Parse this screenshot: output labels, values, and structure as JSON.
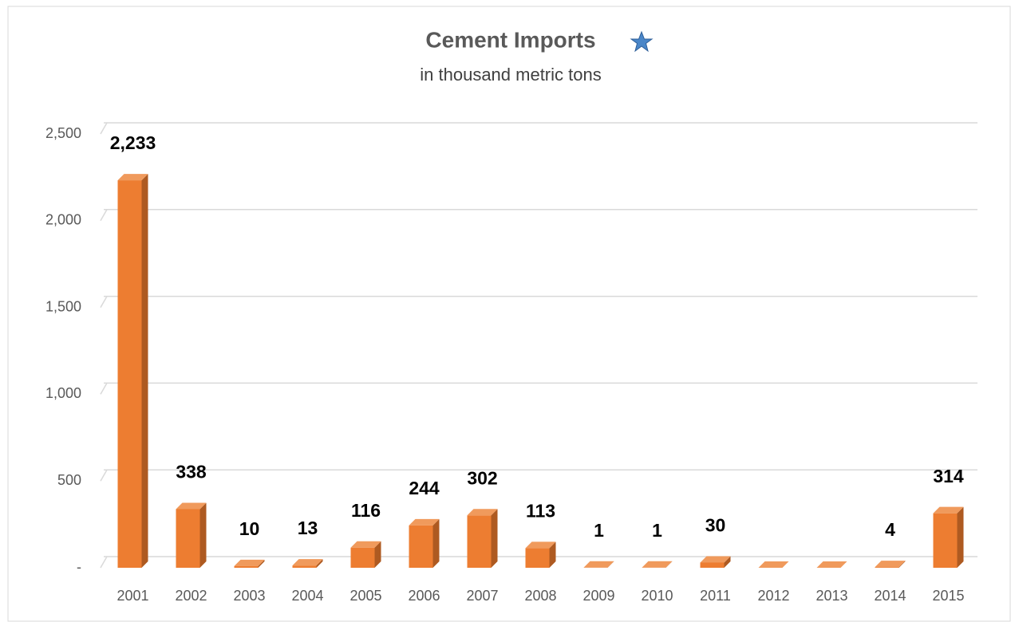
{
  "chart_data": {
    "type": "bar3d",
    "title": "Cement Imports",
    "subtitle": "in thousand metric tons",
    "categories": [
      "2001",
      "2002",
      "2003",
      "2004",
      "2005",
      "2006",
      "2007",
      "2008",
      "2009",
      "2010",
      "2011",
      "2012",
      "2013",
      "2014",
      "2015"
    ],
    "values": [
      2233,
      338,
      10,
      13,
      116,
      244,
      302,
      113,
      1,
      1,
      30,
      0,
      0,
      4,
      314
    ],
    "value_labels": [
      "2,233",
      "338",
      "10",
      "13",
      "116",
      "244",
      "302",
      "113",
      "1",
      "1",
      "30",
      null,
      null,
      "4",
      "314"
    ],
    "color": "#ed7d31",
    "ylim": [
      0,
      2500
    ],
    "yticks": [
      {
        "value": 0,
        "label": "-"
      },
      500,
      {
        "value": 1000,
        "label": "1,000"
      },
      {
        "value": 1500,
        "label": "1,500"
      },
      {
        "value": 2000,
        "label": "2,000"
      },
      {
        "value": 2500,
        "label": "2,500"
      }
    ],
    "grid": true
  }
}
